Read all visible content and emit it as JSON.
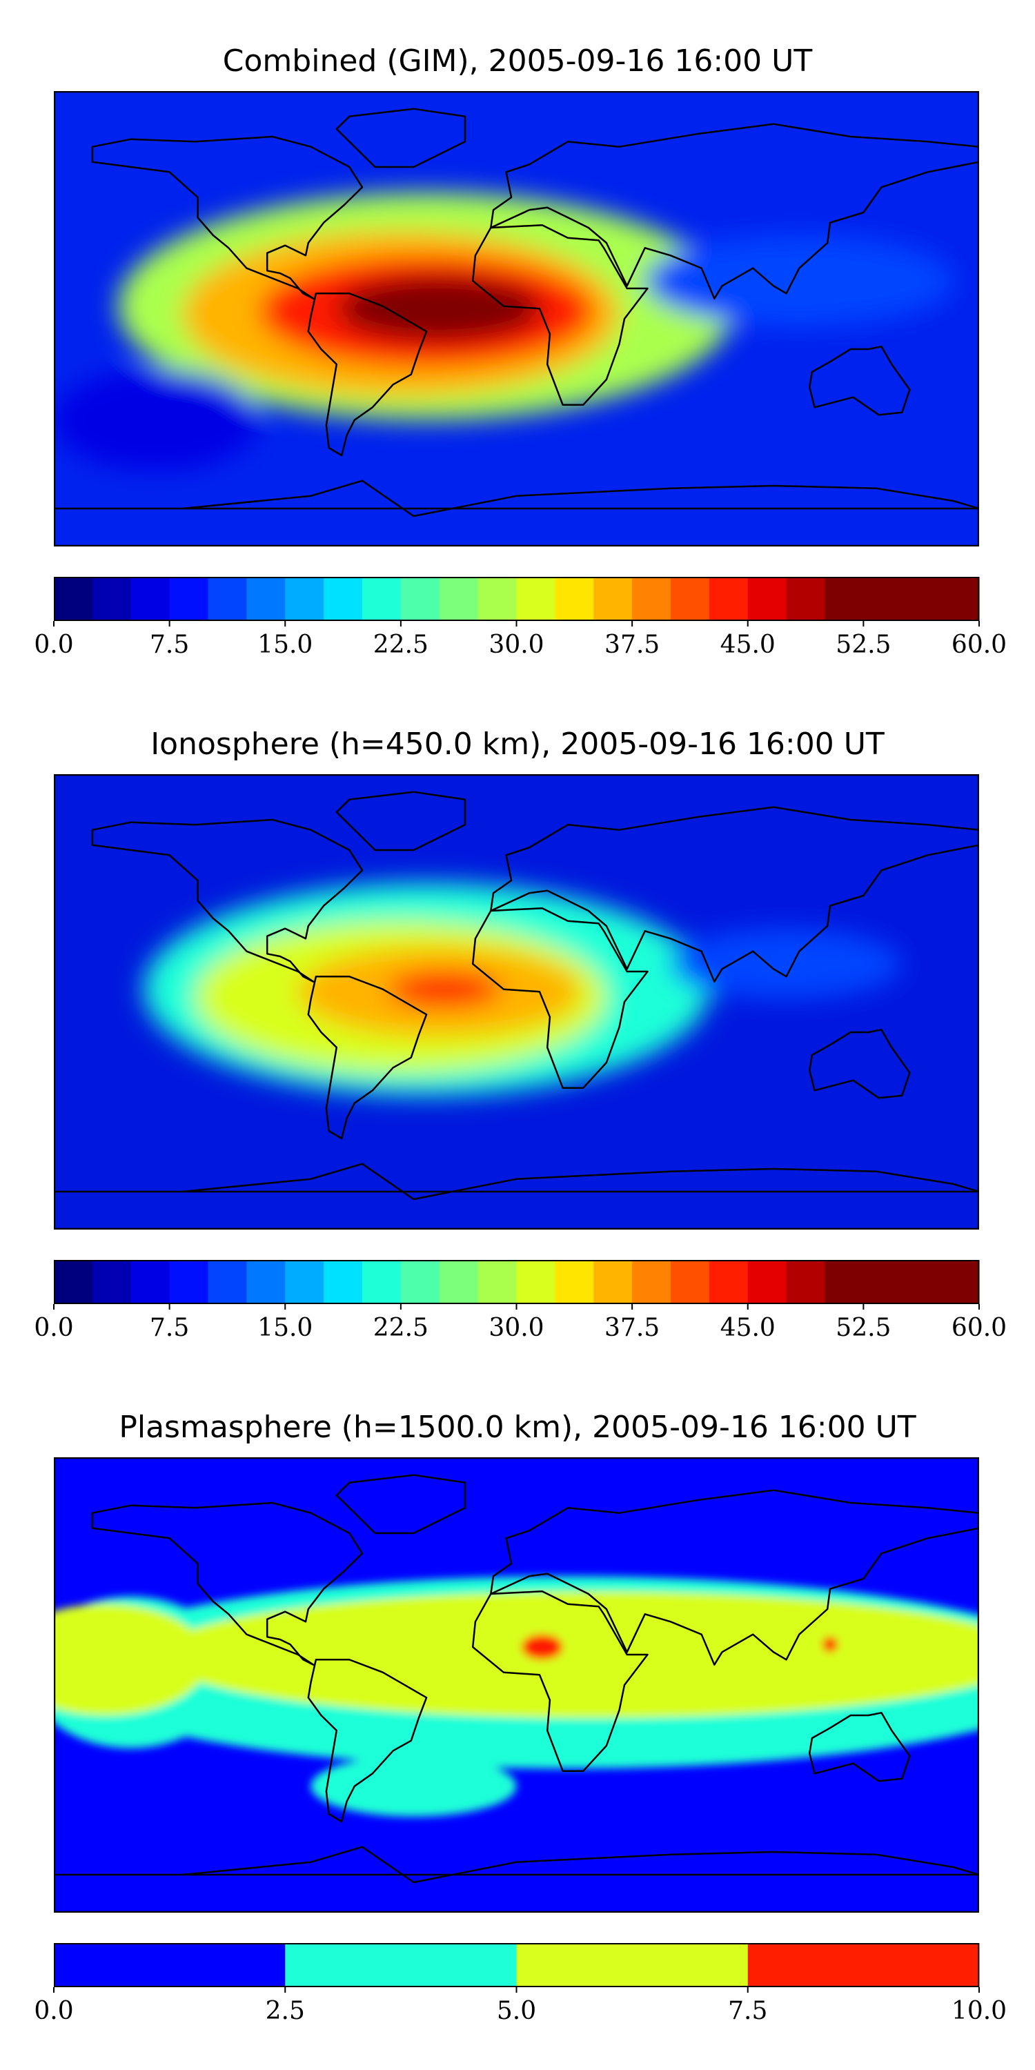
{
  "chart_data": [
    {
      "type": "heatmap",
      "title": "Combined (GIM), 2005-09-16 16:00 UT",
      "colorbar": {
        "min": 0,
        "max": 60,
        "levels": 24,
        "tick_labels": [
          "0.0",
          "7.5",
          "15.0",
          "22.5",
          "30.0",
          "37.5",
          "45.0",
          "52.5",
          "60.0"
        ],
        "tick_values": [
          0,
          7.5,
          15,
          22.5,
          30,
          37.5,
          45,
          52.5,
          60
        ],
        "colors": [
          "#00007f",
          "#0000b2",
          "#0000e5",
          "#0010ff",
          "#0044ff",
          "#0078ff",
          "#00acff",
          "#00e0ff",
          "#1effd8",
          "#4dffaa",
          "#7cff7b",
          "#aaff4d",
          "#d8ff1e",
          "#ffe500",
          "#ffb400",
          "#ff8200",
          "#ff5000",
          "#ff1e00",
          "#e50000",
          "#b20000",
          "#7f0000",
          "#7f0000",
          "#7f0000",
          "#7f0000"
        ]
      },
      "background": "#0022ee",
      "blobs": [
        {
          "lon": -35,
          "lat": 5,
          "rx": 120,
          "ry": 45,
          "value": 28
        },
        {
          "lon": -45,
          "lat": 2,
          "rx": 85,
          "ry": 33,
          "value": 37
        },
        {
          "lon": -35,
          "lat": 3,
          "rx": 65,
          "ry": 22,
          "value": 44
        },
        {
          "lon": -30,
          "lat": 4,
          "rx": 40,
          "ry": 13,
          "value": 51
        },
        {
          "lon": 110,
          "lat": 15,
          "rx": 60,
          "ry": 18,
          "value": 12
        },
        {
          "lon": -140,
          "lat": -40,
          "rx": 40,
          "ry": 20,
          "value": 6
        }
      ]
    },
    {
      "type": "heatmap",
      "title": "Ionosphere  (h=450.0 km), 2005-09-16 16:00 UT",
      "colorbar": {
        "min": 0,
        "max": 60,
        "levels": 24,
        "tick_labels": [
          "0.0",
          "7.5",
          "15.0",
          "22.5",
          "30.0",
          "37.5",
          "45.0",
          "52.5",
          "60.0"
        ],
        "tick_values": [
          0,
          7.5,
          15,
          22.5,
          30,
          37.5,
          45,
          52.5,
          60
        ],
        "colors": [
          "#00007f",
          "#0000b2",
          "#0000e5",
          "#0010ff",
          "#0044ff",
          "#0078ff",
          "#00acff",
          "#00e0ff",
          "#1effd8",
          "#4dffaa",
          "#7cff7b",
          "#aaff4d",
          "#d8ff1e",
          "#ffe500",
          "#ffb400",
          "#ff8200",
          "#ff5000",
          "#ff1e00",
          "#e50000",
          "#b20000",
          "#7f0000",
          "#7f0000",
          "#7f0000",
          "#7f0000"
        ]
      },
      "background": "#0018dd",
      "blobs": [
        {
          "lon": -35,
          "lat": 5,
          "rx": 110,
          "ry": 42,
          "value": 22
        },
        {
          "lon": -45,
          "lat": 2,
          "rx": 80,
          "ry": 30,
          "value": 30
        },
        {
          "lon": -30,
          "lat": 4,
          "rx": 55,
          "ry": 18,
          "value": 37
        },
        {
          "lon": -28,
          "lat": 5,
          "rx": 22,
          "ry": 7,
          "value": 44
        },
        {
          "lon": 105,
          "lat": 15,
          "rx": 45,
          "ry": 14,
          "value": 10
        }
      ]
    },
    {
      "type": "heatmap",
      "title": "Plasmasphere (h=1500.0 km), 2005-09-16 16:00 UT",
      "colorbar": {
        "min": 0,
        "max": 10,
        "levels": 4,
        "tick_labels": [
          "0.0",
          "2.5",
          "5.0",
          "7.5",
          "10.0"
        ],
        "tick_values": [
          0,
          2.5,
          5,
          7.5,
          10
        ],
        "colors": [
          "#0000ff",
          "#1effd8",
          "#d8ff1e",
          "#ff1e00"
        ]
      },
      "background": "#0000ff",
      "blobs": [
        {
          "lon": 20,
          "lat": 5,
          "rx": 200,
          "ry": 38,
          "value": 3.5
        },
        {
          "lon": -150,
          "lat": 5,
          "rx": 40,
          "ry": 30,
          "value": 3.5
        },
        {
          "lon": -40,
          "lat": -40,
          "rx": 40,
          "ry": 12,
          "value": 3.5
        },
        {
          "lon": 30,
          "lat": 12,
          "rx": 170,
          "ry": 25,
          "value": 6
        },
        {
          "lon": -160,
          "lat": 10,
          "rx": 40,
          "ry": 22,
          "value": 6
        },
        {
          "lon": 10,
          "lat": 15,
          "rx": 8,
          "ry": 5,
          "value": 8.5
        },
        {
          "lon": 122,
          "lat": 16,
          "rx": 3,
          "ry": 3,
          "value": 8.5
        }
      ]
    }
  ]
}
